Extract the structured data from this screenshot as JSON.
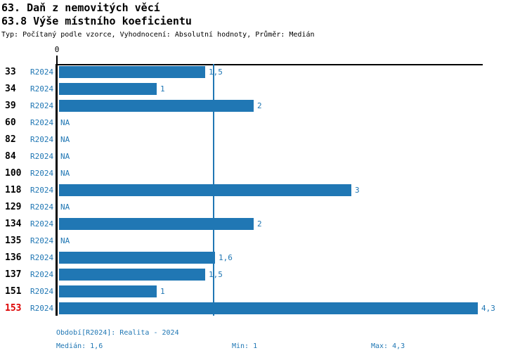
{
  "header": {
    "title_line1": "63. Daň z nemovitých věcí",
    "title_line2": "63.8 Výše místního koeficientu",
    "meta": "Typ: Počítaný podle vzorce, Vyhodnocení: Absolutní hodnoty, Průměr: Medián"
  },
  "chart_data": {
    "type": "bar",
    "orientation": "horizontal",
    "title": "63.8 Výše místního koeficientu",
    "series_label": "R2024",
    "axis_zero_label": "0",
    "categories": [
      "33",
      "34",
      "39",
      "60",
      "82",
      "84",
      "100",
      "118",
      "129",
      "134",
      "135",
      "136",
      "137",
      "151",
      "153"
    ],
    "values": [
      1.5,
      1,
      2,
      null,
      null,
      null,
      null,
      3,
      null,
      2,
      null,
      1.6,
      1.5,
      1,
      4.3
    ],
    "value_labels": [
      "1,5",
      "1",
      "2",
      "NA",
      "NA",
      "NA",
      "NA",
      "3",
      "NA",
      "2",
      "NA",
      "1,6",
      "1,5",
      "1",
      "4,3"
    ],
    "na_label": "NA",
    "highlighted_category": "153",
    "median_value": 1.6,
    "xlim": [
      0,
      4.35
    ],
    "grid": false,
    "legend_position": "none"
  },
  "footer": {
    "period": "Období[R2024]: Realita - 2024",
    "median": "Medián: 1,6",
    "min": "Min: 1",
    "max": "Max: 4,3"
  },
  "colors": {
    "bar_blue": "#2077b4",
    "text_blue": "#2077b4",
    "highlight_red": "#dd0000",
    "axis_black": "#000000"
  }
}
